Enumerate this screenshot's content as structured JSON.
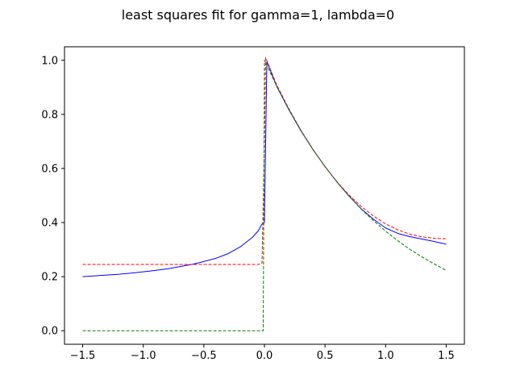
{
  "chart_data": {
    "type": "line",
    "title": "least squares fit for gamma=1, lambda=0",
    "xlabel": "",
    "ylabel": "",
    "xlim": [
      -1.65,
      1.65
    ],
    "ylim": [
      -0.05,
      1.05
    ],
    "grid": false,
    "legend": "none",
    "x_ticks": [
      -1.5,
      -1.0,
      -0.5,
      0.0,
      0.5,
      1.0,
      1.5
    ],
    "x_tick_labels": [
      "−1.5",
      "−1.0",
      "−0.5",
      "0.0",
      "0.5",
      "1.0",
      "1.5"
    ],
    "y_ticks": [
      0.0,
      0.2,
      0.4,
      0.6,
      0.8,
      1.0
    ],
    "y_tick_labels": [
      "0.0",
      "0.2",
      "0.4",
      "0.6",
      "0.8",
      "1.0"
    ],
    "series": [
      {
        "color": "#0000ff",
        "dash": "solid",
        "x": [
          -1.5,
          -1.4,
          -1.3,
          -1.2,
          -1.1,
          -1.0,
          -0.9,
          -0.8,
          -0.7,
          -0.6,
          -0.5,
          -0.4,
          -0.3,
          -0.2,
          -0.1,
          -0.05,
          -0.02,
          0.0,
          0.02,
          0.1,
          0.2,
          0.3,
          0.4,
          0.5,
          0.6,
          0.7,
          0.8,
          0.9,
          1.0,
          1.1,
          1.2,
          1.3,
          1.4,
          1.5
        ],
        "y": [
          0.2,
          0.203,
          0.206,
          0.209,
          0.213,
          0.218,
          0.223,
          0.229,
          0.237,
          0.245,
          0.256,
          0.268,
          0.285,
          0.31,
          0.345,
          0.37,
          0.395,
          0.4,
          0.995,
          0.905,
          0.818,
          0.74,
          0.67,
          0.607,
          0.549,
          0.497,
          0.45,
          0.412,
          0.38,
          0.36,
          0.348,
          0.339,
          0.33,
          0.32
        ]
      },
      {
        "color": "#ff0000",
        "dash": "dashed",
        "x": [
          -1.5,
          -1.0,
          -0.5,
          -0.05,
          -0.02,
          0.0,
          0.01,
          0.1,
          0.2,
          0.3,
          0.4,
          0.5,
          0.6,
          0.7,
          0.8,
          0.9,
          1.0,
          1.1,
          1.2,
          1.3,
          1.4,
          1.5
        ],
        "y": [
          0.245,
          0.245,
          0.245,
          0.245,
          0.25,
          0.7,
          1.01,
          0.91,
          0.822,
          0.742,
          0.671,
          0.606,
          0.55,
          0.501,
          0.459,
          0.424,
          0.395,
          0.373,
          0.357,
          0.347,
          0.342,
          0.34
        ]
      },
      {
        "color": "#008000",
        "dash": "dashed",
        "x": [
          -1.5,
          -1.0,
          -0.5,
          -0.01,
          -0.01,
          0.0,
          0.1,
          0.2,
          0.3,
          0.4,
          0.5,
          0.6,
          0.7,
          0.8,
          0.9,
          1.0,
          1.1,
          1.2,
          1.3,
          1.4,
          1.5
        ],
        "y": [
          0.0,
          0.0,
          0.0,
          0.0,
          0.002,
          1.0,
          0.905,
          0.819,
          0.741,
          0.67,
          0.607,
          0.549,
          0.497,
          0.449,
          0.407,
          0.368,
          0.333,
          0.301,
          0.273,
          0.247,
          0.223
        ]
      }
    ]
  }
}
